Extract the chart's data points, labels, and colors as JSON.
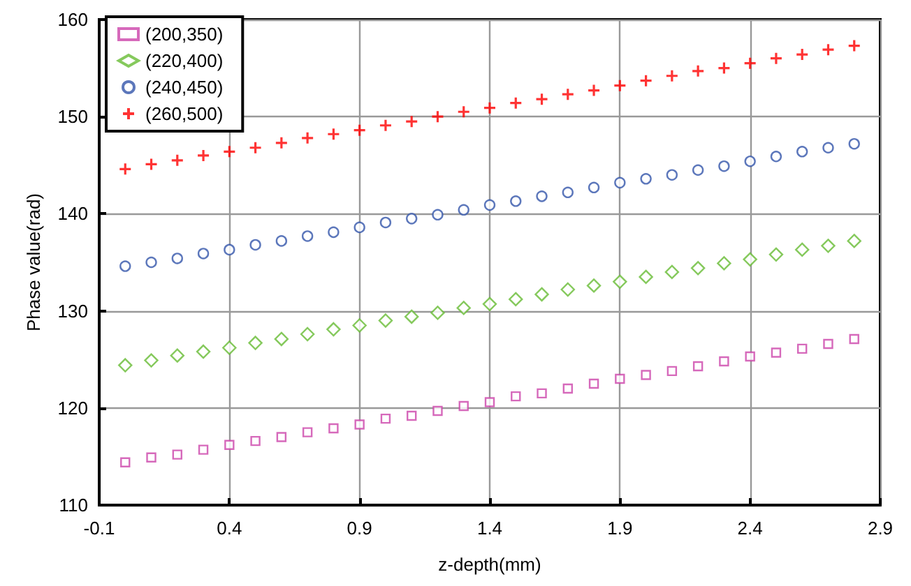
{
  "chart_data": {
    "type": "scatter",
    "xlabel": "z-depth(mm)",
    "ylabel": "Phase value(rad)",
    "x": [
      0,
      0.1,
      0.2,
      0.3,
      0.4,
      0.5,
      0.6,
      0.7,
      0.8,
      0.9,
      1.0,
      1.1,
      1.2,
      1.3,
      1.4,
      1.5,
      1.6,
      1.7,
      1.8,
      1.9,
      2.0,
      2.1,
      2.2,
      2.3,
      2.4,
      2.5,
      2.6,
      2.7,
      2.8
    ],
    "series": [
      {
        "name": "(200,350)",
        "color": "#cc44aa",
        "marker": "square",
        "values": [
          114.4,
          114.9,
          115.2,
          115.7,
          116.2,
          116.6,
          117.0,
          117.5,
          117.9,
          118.3,
          118.9,
          119.2,
          119.7,
          120.2,
          120.6,
          121.2,
          121.5,
          122.0,
          122.5,
          123.0,
          123.4,
          123.8,
          124.3,
          124.8,
          125.3,
          125.7,
          126.1,
          126.6,
          127.1
        ]
      },
      {
        "name": "(220,400)",
        "color": "#66bb33",
        "marker": "diamond",
        "values": [
          124.4,
          124.9,
          125.4,
          125.8,
          126.2,
          126.7,
          127.1,
          127.6,
          128.1,
          128.5,
          129.0,
          129.4,
          129.8,
          130.3,
          130.7,
          131.2,
          131.7,
          132.2,
          132.6,
          133.0,
          133.5,
          134.0,
          134.4,
          134.9,
          135.3,
          135.8,
          136.3,
          136.7,
          137.2
        ]
      },
      {
        "name": "(240,450)",
        "color": "#3355aa",
        "marker": "circle",
        "values": [
          134.6,
          135.0,
          135.4,
          135.9,
          136.3,
          136.8,
          137.2,
          137.7,
          138.1,
          138.6,
          139.1,
          139.5,
          139.9,
          140.4,
          140.9,
          141.3,
          141.8,
          142.2,
          142.7,
          143.2,
          143.6,
          144.0,
          144.5,
          144.9,
          145.4,
          145.9,
          146.4,
          146.8,
          147.2
        ]
      },
      {
        "name": "(260,500)",
        "color": "#ff0000",
        "marker": "cross",
        "values": [
          144.6,
          145.1,
          145.5,
          146.0,
          146.4,
          146.8,
          147.3,
          147.8,
          148.2,
          148.6,
          149.1,
          149.5,
          150.0,
          150.5,
          150.9,
          151.4,
          151.8,
          152.3,
          152.7,
          153.2,
          153.7,
          154.2,
          154.7,
          155.0,
          155.5,
          156.0,
          156.4,
          156.9,
          157.3
        ]
      }
    ],
    "xlim": [
      -0.1,
      2.9
    ],
    "xticks": [
      -0.1,
      0.4,
      0.9,
      1.4,
      1.9,
      2.4,
      2.9
    ],
    "ylim": [
      110,
      160
    ],
    "yticks": [
      110,
      120,
      130,
      140,
      150,
      160
    ],
    "grid": true,
    "legend": "top left"
  }
}
